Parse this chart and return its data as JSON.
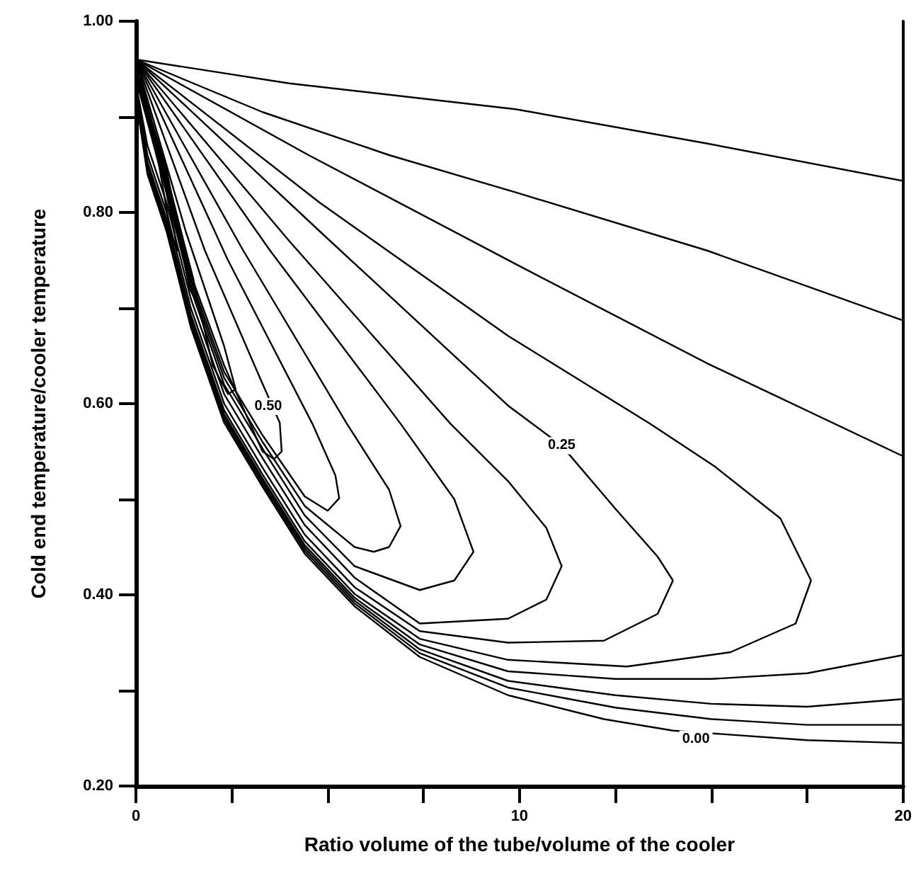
{
  "chart_data": {
    "type": "line",
    "xlabel": "Ratio volume of the tube/volume of the cooler",
    "ylabel": "Cold end temperature/cooler temperature",
    "xlim": [
      0,
      20
    ],
    "ylim": [
      0.2,
      1.0
    ],
    "xticks": [
      0,
      {
        "value": 2.5,
        "label": null
      },
      {
        "value": 5,
        "label": null
      },
      {
        "value": 7.5,
        "label": null
      },
      10,
      {
        "value": 12.5,
        "label": null
      },
      {
        "value": 15,
        "label": null
      },
      {
        "value": 17.5,
        "label": null
      },
      20
    ],
    "yticks": [
      {
        "value": 0.2,
        "label": "0.20"
      },
      {
        "value": 0.3,
        "label": null
      },
      {
        "value": 0.4,
        "label": "0.40"
      },
      {
        "value": 0.5,
        "label": null
      },
      {
        "value": 0.6,
        "label": "0.60"
      },
      {
        "value": 0.7,
        "label": null
      },
      {
        "value": 0.8,
        "label": "0.80"
      },
      {
        "value": 0.9,
        "label": null
      },
      {
        "value": 1.0,
        "label": "1.00"
      }
    ],
    "grid": false,
    "marker": "none",
    "line_style": "solid",
    "annotations": [
      {
        "text": "0.50",
        "x": 3.45,
        "y": 0.597
      },
      {
        "text": "0.25",
        "x": 11.1,
        "y": 0.556
      },
      {
        "text": "0.00",
        "x": 14.6,
        "y": 0.249
      }
    ],
    "series": [
      {
        "color": "#000000",
        "x": [
          0,
          4,
          9.9,
          14.9,
          20
        ],
        "values": [
          0.96,
          0.935,
          0.908,
          0.872,
          0.833
        ]
      },
      {
        "color": "#000000",
        "x": [
          0,
          3.3,
          6.6,
          9.9,
          14.9,
          20
        ],
        "values": [
          0.96,
          0.905,
          0.86,
          0.821,
          0.76,
          0.687
        ]
      },
      {
        "color": "#000000",
        "x": [
          0,
          4.5,
          9.9,
          14.9,
          20
        ],
        "values": [
          0.96,
          0.86,
          0.746,
          0.642,
          0.545
        ]
      },
      {
        "color": "#000000",
        "x": [
          0,
          4.8,
          9.7,
          13.4,
          15.1,
          16.8,
          17.6,
          17.2,
          15.5,
          12.8,
          9.7,
          7.4,
          5.7,
          4.4,
          3.3,
          2.3,
          1.43,
          0.8,
          0.3,
          0
        ],
        "values": [
          0.96,
          0.81,
          0.671,
          0.579,
          0.534,
          0.48,
          0.415,
          0.37,
          0.34,
          0.325,
          0.332,
          0.354,
          0.401,
          0.456,
          0.526,
          0.593,
          0.693,
          0.793,
          0.853,
          0.925
        ]
      },
      {
        "color": "#000000",
        "x": [
          0,
          4.8,
          9.7,
          11.1,
          12.5,
          13.6,
          14,
          13.6,
          12.2,
          9.7,
          7.4,
          5.7,
          4.4,
          3.3,
          2.3,
          1.43,
          0.8,
          0.3,
          0
        ],
        "values": [
          0.96,
          0.78,
          0.598,
          0.556,
          0.49,
          0.44,
          0.415,
          0.38,
          0.352,
          0.35,
          0.362,
          0.408,
          0.463,
          0.533,
          0.6,
          0.7,
          0.8,
          0.86,
          0.93
        ]
      },
      {
        "color": "#000000",
        "x": [
          0,
          4,
          8.2,
          9.7,
          10.7,
          11.1,
          10.7,
          9.7,
          7.4,
          5.7,
          4.4,
          3.3,
          2.3,
          1.43,
          0.8,
          0.3,
          0
        ],
        "values": [
          0.96,
          0.77,
          0.579,
          0.519,
          0.47,
          0.43,
          0.395,
          0.375,
          0.37,
          0.418,
          0.473,
          0.543,
          0.61,
          0.71,
          0.81,
          0.87,
          0.935
        ]
      },
      {
        "color": "#000000",
        "x": [
          0,
          3.5,
          6.9,
          8.3,
          8.8,
          8.3,
          7.4,
          5.7,
          4.4,
          3.3,
          2.3,
          1.43,
          0.8,
          0
        ],
        "values": [
          0.96,
          0.76,
          0.579,
          0.5,
          0.445,
          0.415,
          0.405,
          0.43,
          0.483,
          0.553,
          0.62,
          0.72,
          0.82,
          0.94
        ]
      },
      {
        "color": "#000000",
        "x": [
          0,
          2.8,
          5.5,
          6.6,
          6.9,
          6.6,
          6.2,
          5.7,
          4.4,
          3.3,
          2.3,
          1.43,
          0.8,
          0
        ],
        "values": [
          0.96,
          0.76,
          0.579,
          0.51,
          0.472,
          0.45,
          0.445,
          0.45,
          0.493,
          0.56,
          0.627,
          0.725,
          0.825,
          0.94
        ]
      },
      {
        "color": "#000000",
        "x": [
          0,
          2.4,
          4.6,
          5.2,
          5.3,
          5.0,
          4.4,
          3.3,
          2.3,
          1.43,
          0.8,
          0
        ],
        "values": [
          0.96,
          0.75,
          0.579,
          0.525,
          0.501,
          0.488,
          0.503,
          0.567,
          0.633,
          0.73,
          0.83,
          0.945
        ]
      },
      {
        "color": "#000000",
        "x": [
          0,
          1.8,
          3.2,
          3.75,
          3.8,
          3.6,
          3.3,
          2.3,
          1.43,
          0.8,
          0
        ],
        "values": [
          0.96,
          0.76,
          0.63,
          0.58,
          0.55,
          0.542,
          0.55,
          0.64,
          0.735,
          0.835,
          0.945
        ]
      },
      {
        "color": "#000000",
        "x": [
          0,
          1.3,
          2.3,
          2.6,
          2.4,
          2.0,
          1.43,
          0.8,
          0
        ],
        "values": [
          0.96,
          0.78,
          0.66,
          0.615,
          0.61,
          0.64,
          0.74,
          0.84,
          0.95
        ]
      },
      {
        "color": "#000000",
        "x": [
          0,
          0.9,
          1.5,
          1.6,
          1.4,
          0.8,
          0
        ],
        "values": [
          0.96,
          0.82,
          0.73,
          0.705,
          0.72,
          0.845,
          0.95
        ]
      },
      {
        "color": "#000000",
        "x": [
          0,
          0.6,
          1.0,
          1.07,
          0.9,
          0.6,
          0
        ],
        "values": [
          0.96,
          0.86,
          0.78,
          0.76,
          0.78,
          0.85,
          0.95
        ]
      },
      {
        "color": "#000000",
        "x": [
          0,
          0.3,
          0.8,
          1.43,
          2.3,
          3.3,
          4.4,
          5.7,
          7.4,
          9.7,
          12.5,
          15,
          17.5,
          20
        ],
        "values": [
          0.92,
          0.849,
          0.789,
          0.689,
          0.589,
          0.522,
          0.452,
          0.397,
          0.348,
          0.32,
          0.312,
          0.312,
          0.318,
          0.337
        ]
      },
      {
        "color": "#000000",
        "x": [
          0,
          0.3,
          0.8,
          1.43,
          2.3,
          3.3,
          4.4,
          5.7,
          7.4,
          9.7,
          12.5,
          15,
          17.5,
          20
        ],
        "values": [
          0.92,
          0.846,
          0.786,
          0.686,
          0.586,
          0.519,
          0.449,
          0.394,
          0.343,
          0.31,
          0.295,
          0.286,
          0.283,
          0.291
        ]
      },
      {
        "color": "#000000",
        "x": [
          0,
          0.3,
          0.8,
          1.43,
          2.3,
          3.3,
          4.4,
          5.7,
          7.4,
          9.7,
          12.5,
          15,
          17.5,
          20
        ],
        "values": [
          0.92,
          0.843,
          0.783,
          0.683,
          0.583,
          0.516,
          0.446,
          0.391,
          0.339,
          0.303,
          0.282,
          0.27,
          0.264,
          0.264
        ]
      },
      {
        "color": "#000000",
        "x": [
          0,
          0.3,
          0.8,
          1.43,
          2.3,
          3.3,
          4.4,
          5.7,
          7.4,
          9.7,
          12.2,
          14,
          17.5,
          20
        ],
        "values": [
          0.92,
          0.84,
          0.78,
          0.68,
          0.58,
          0.513,
          0.443,
          0.388,
          0.335,
          0.295,
          0.27,
          0.258,
          0.248,
          0.245
        ]
      }
    ]
  }
}
